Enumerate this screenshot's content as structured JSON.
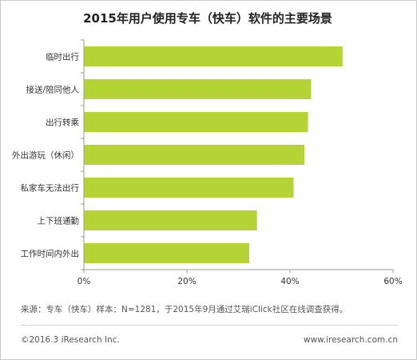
{
  "chart_data": {
    "type": "bar",
    "orientation": "horizontal",
    "title": "2015年用户使用专车（快车）软件的主要场景",
    "categories": [
      "临时出行",
      "接送/陪同他人",
      "出行转乘",
      "外出游玩（休闲）",
      "私家车无法出行",
      "上下班通勤",
      "工作时间内外出"
    ],
    "values": [
      50.2,
      44.1,
      43.5,
      42.8,
      40.7,
      33.6,
      32.1
    ],
    "unit": "%",
    "xlim": [
      0,
      60
    ],
    "ticks": [
      "0%",
      "20%",
      "40%",
      "60%"
    ],
    "tick_values": [
      0,
      20,
      40,
      60
    ],
    "grid": false,
    "bar_color": "#b5d334",
    "axis_color": "#9a9a9a"
  },
  "source_note": "来源：专车（快车）样本：N=1281，于2015年9月通过艾瑞iClick社区在线调查获得。",
  "copyright": "©2016.3 iResearch Inc.",
  "website": "www.iresearch.com.cn"
}
